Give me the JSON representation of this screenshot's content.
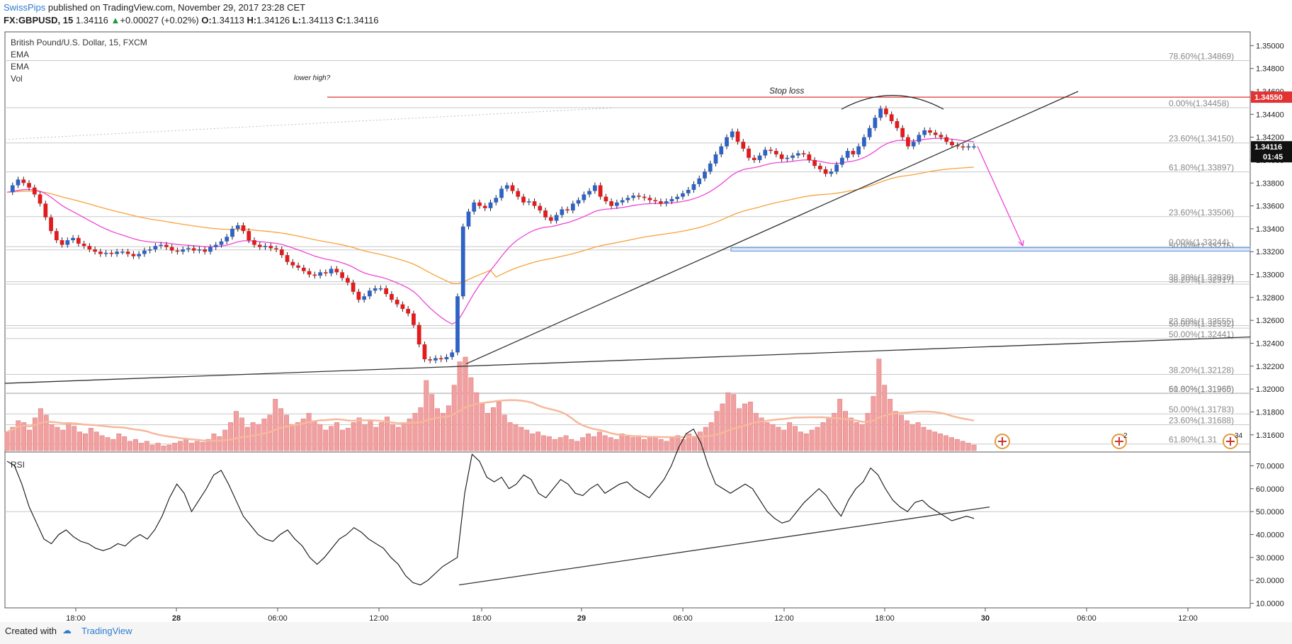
{
  "header": {
    "author": "SwissPips",
    "published": " published on TradingView.com, November 29, 2017 23:28 CET",
    "symbol": "FX:GBPUSD, 15",
    "last": "1.34116",
    "change": "+0.00027 (+0.02%)",
    "o_label": "O:",
    "o": "1.34113",
    "h_label": "H:",
    "h": "1.34126",
    "l_label": "L:",
    "l": "1.34113",
    "c_label": "C:",
    "c": "1.34116",
    "up_arrow": "▲"
  },
  "legend": [
    "British Pound/U.S. Dollar, 15, FXCM",
    "EMA",
    "EMA",
    "Vol"
  ],
  "rsi_label": "RSI",
  "footer": {
    "created_with": "Created with",
    "brand": "TradingView"
  },
  "colors": {
    "bull": "#2e62c4",
    "bear": "#e21c1c",
    "ema_fast": "#ee45d6",
    "ema_slow": "#f7a23a",
    "volume": "#f0a0a0",
    "volume_ma": "#f6b89b",
    "stop_line": "#e23232",
    "target_box": "#5a8fd8",
    "projection_arrow": "#ee45d6"
  },
  "chart_data": {
    "type": "candlestick",
    "symbol": "FX:GBPUSD",
    "interval": "15",
    "price_axis": {
      "ticks": [
        "1.35000",
        "1.34800",
        "1.34600",
        "1.34400",
        "1.34200",
        "1.34000",
        "1.33800",
        "1.33600",
        "1.33400",
        "1.33200",
        "1.33000",
        "1.32800",
        "1.32600",
        "1.32400",
        "1.32200",
        "1.32000",
        "1.31800",
        "1.31600"
      ],
      "range": [
        1.3145,
        1.3512
      ]
    },
    "time_axis": [
      "18:00",
      "28",
      "06:00",
      "12:00",
      "18:00",
      "29",
      "06:00",
      "12:00",
      "18:00",
      "30",
      "06:00",
      "12:00"
    ],
    "last_price_label": "1.34116",
    "countdown_label": "01:45",
    "stop_price_label": "1.34550",
    "close_path": [
      1.3372,
      1.3378,
      1.3383,
      1.338,
      1.3376,
      1.337,
      1.3362,
      1.335,
      1.3338,
      1.333,
      1.3326,
      1.333,
      1.3332,
      1.3327,
      1.3325,
      1.3322,
      1.332,
      1.3318,
      1.3319,
      1.3318,
      1.332,
      1.332,
      1.3318,
      1.3316,
      1.3318,
      1.3321,
      1.3322,
      1.3325,
      1.3326,
      1.3324,
      1.3321,
      1.332,
      1.3322,
      1.3323,
      1.3321,
      1.3322,
      1.332,
      1.3324,
      1.3326,
      1.3329,
      1.3333,
      1.334,
      1.3343,
      1.3338,
      1.333,
      1.3326,
      1.3324,
      1.3325,
      1.3323,
      1.3322,
      1.3317,
      1.3311,
      1.3308,
      1.3306,
      1.3303,
      1.33,
      1.3299,
      1.3302,
      1.3301,
      1.3305,
      1.3302,
      1.3297,
      1.3293,
      1.3285,
      1.3278,
      1.3281,
      1.3286,
      1.3288,
      1.3288,
      1.3283,
      1.3278,
      1.3274,
      1.327,
      1.3266,
      1.3256,
      1.3239,
      1.3226,
      1.3225,
      1.3227,
      1.3226,
      1.3228,
      1.3232,
      1.3281,
      1.3342,
      1.3355,
      1.3363,
      1.336,
      1.3358,
      1.3363,
      1.3367,
      1.3375,
      1.3378,
      1.3373,
      1.3368,
      1.3363,
      1.3364,
      1.336,
      1.3356,
      1.335,
      1.3347,
      1.3352,
      1.3357,
      1.3356,
      1.3362,
      1.3365,
      1.337,
      1.3373,
      1.3378,
      1.3368,
      1.3364,
      1.336,
      1.3363,
      1.3365,
      1.3367,
      1.3369,
      1.3368,
      1.3367,
      1.3365,
      1.3364,
      1.3362,
      1.3364,
      1.3366,
      1.3368,
      1.3371,
      1.3374,
      1.3379,
      1.3384,
      1.339,
      1.3397,
      1.3405,
      1.3412,
      1.342,
      1.3425,
      1.3416,
      1.341,
      1.3402,
      1.34,
      1.3404,
      1.3409,
      1.3408,
      1.3405,
      1.3401,
      1.3402,
      1.3404,
      1.3406,
      1.3405,
      1.34,
      1.3395,
      1.3392,
      1.3388,
      1.339,
      1.3396,
      1.3402,
      1.3408,
      1.3405,
      1.3412,
      1.342,
      1.3428,
      1.3437,
      1.3445,
      1.344,
      1.3434,
      1.3428,
      1.342,
      1.3412,
      1.3416,
      1.3422,
      1.3426,
      1.3424,
      1.3422,
      1.342,
      1.3416,
      1.3413,
      1.3412,
      1.3411,
      1.3412,
      1.3412
    ],
    "volume": [
      0.2,
      0.25,
      0.32,
      0.3,
      0.22,
      0.35,
      0.45,
      0.38,
      0.28,
      0.25,
      0.22,
      0.3,
      0.26,
      0.2,
      0.18,
      0.24,
      0.2,
      0.16,
      0.14,
      0.12,
      0.18,
      0.15,
      0.1,
      0.12,
      0.08,
      0.1,
      0.06,
      0.08,
      0.05,
      0.06,
      0.08,
      0.1,
      0.12,
      0.08,
      0.1,
      0.09,
      0.12,
      0.18,
      0.15,
      0.22,
      0.3,
      0.42,
      0.35,
      0.25,
      0.3,
      0.28,
      0.34,
      0.38,
      0.55,
      0.45,
      0.38,
      0.28,
      0.3,
      0.34,
      0.4,
      0.32,
      0.28,
      0.22,
      0.26,
      0.3,
      0.22,
      0.24,
      0.3,
      0.35,
      0.28,
      0.32,
      0.25,
      0.3,
      0.36,
      0.28,
      0.25,
      0.3,
      0.34,
      0.4,
      0.46,
      0.75,
      0.6,
      0.45,
      0.4,
      0.48,
      0.7,
      0.95,
      1.0,
      0.78,
      0.62,
      0.5,
      0.4,
      0.46,
      0.52,
      0.38,
      0.3,
      0.28,
      0.25,
      0.22,
      0.18,
      0.2,
      0.16,
      0.15,
      0.12,
      0.14,
      0.16,
      0.12,
      0.1,
      0.14,
      0.18,
      0.15,
      0.2,
      0.16,
      0.14,
      0.12,
      0.18,
      0.15,
      0.14,
      0.16,
      0.12,
      0.15,
      0.14,
      0.12,
      0.1,
      0.14,
      0.16,
      0.12,
      0.18,
      0.15,
      0.2,
      0.25,
      0.3,
      0.42,
      0.5,
      0.62,
      0.6,
      0.45,
      0.5,
      0.52,
      0.4,
      0.35,
      0.3,
      0.28,
      0.25,
      0.22,
      0.3,
      0.26,
      0.2,
      0.18,
      0.22,
      0.25,
      0.3,
      0.35,
      0.4,
      0.55,
      0.42,
      0.35,
      0.3,
      0.28,
      0.4,
      0.58,
      0.98,
      0.7,
      0.55,
      0.42,
      0.38,
      0.32,
      0.28,
      0.3,
      0.25,
      0.22,
      0.2,
      0.18,
      0.16,
      0.14,
      0.12,
      0.1,
      0.08,
      0.06
    ],
    "rsi": [
      72,
      70,
      62,
      52,
      45,
      38,
      36,
      40,
      42,
      39,
      37,
      36,
      34,
      33,
      34,
      36,
      35,
      38,
      40,
      38,
      42,
      48,
      56,
      62,
      58,
      50,
      55,
      60,
      66,
      68,
      62,
      55,
      48,
      44,
      40,
      38,
      37,
      40,
      42,
      38,
      35,
      30,
      27,
      30,
      34,
      38,
      40,
      43,
      41,
      38,
      36,
      34,
      30,
      27,
      22,
      19,
      18,
      20,
      23,
      26,
      28,
      30,
      58,
      75,
      72,
      65,
      63,
      65,
      60,
      62,
      66,
      64,
      58,
      56,
      60,
      64,
      62,
      58,
      57,
      60,
      62,
      58,
      60,
      62,
      63,
      60,
      58,
      56,
      60,
      64,
      70,
      78,
      84,
      86,
      80,
      70,
      62,
      60,
      58,
      60,
      62,
      60,
      55,
      50,
      47,
      45,
      46,
      50,
      54,
      57,
      60,
      57,
      52,
      48,
      55,
      60,
      63,
      69,
      66,
      60,
      55,
      52,
      50,
      54,
      55,
      52,
      50,
      48,
      46,
      47,
      48,
      47
    ],
    "rsi_axis": [
      "70.0000",
      "60.0000",
      "50.0000",
      "40.0000",
      "30.0000",
      "20.0000",
      "10.0000"
    ],
    "fib_labels": [
      {
        "text": "78.60%(1.34869)",
        "price": 1.34869
      },
      {
        "text": "0.00%(1.34458)",
        "price": 1.34458
      },
      {
        "text": "23.60%(1.34150)",
        "price": 1.3415
      },
      {
        "text": "61.80%(1.33897)",
        "price": 1.33897
      },
      {
        "text": "23.60%(1.33506)",
        "price": 1.33506
      },
      {
        "text": "0.00%(1.33244)",
        "price": 1.33244
      },
      {
        "text": "50.00%(1.33215)",
        "price": 1.33215
      },
      {
        "text": "38.20%(1.32938)",
        "price": 1.32938
      },
      {
        "text": "38.20%(1.32917)",
        "price": 1.32917
      },
      {
        "text": "23.60%(1.32555)",
        "price": 1.32555
      },
      {
        "text": "50.00%(1.32532)",
        "price": 1.32532
      },
      {
        "text": "50.00%(1.32441)",
        "price": 1.32441
      },
      {
        "text": "38.20%(1.32128)",
        "price": 1.32128
      },
      {
        "text": "61.80%(1.31965)",
        "price": 1.31965
      },
      {
        "text": "50.00%(1.31960)",
        "price": 1.3196
      },
      {
        "text": "50.00%(1.31783)",
        "price": 1.31783
      },
      {
        "text": "23.60%(1.31688)",
        "price": 1.31688
      },
      {
        "text": "61.80%(1.31",
        "price": 1.3152
      }
    ],
    "annotations": [
      "lower high?",
      "Stop loss"
    ],
    "event_markers": [
      "2",
      "34"
    ]
  }
}
